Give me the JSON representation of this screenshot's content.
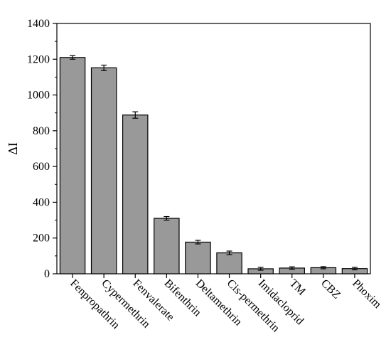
{
  "chart_data": {
    "type": "bar",
    "title": "",
    "xlabel": "",
    "ylabel": "ΔI",
    "ylim": [
      0,
      1400
    ],
    "yticks": [
      0,
      200,
      400,
      600,
      800,
      1000,
      1200,
      1400
    ],
    "grid": false,
    "legend": "none",
    "bar_color": "#999999",
    "categories": [
      "Fenpropathrin",
      "Cypermethrin",
      "Fenvalerate",
      "Bifenthrin",
      "Deltamethrin",
      "Cis-permethrin",
      "Imidacloprid",
      "TM",
      "CBZ",
      "Phoxim"
    ],
    "values": [
      1210,
      1152,
      888,
      310,
      177,
      117,
      28,
      32,
      34,
      29
    ],
    "error": [
      10,
      15,
      18,
      10,
      10,
      10,
      8,
      7,
      6,
      7
    ]
  }
}
